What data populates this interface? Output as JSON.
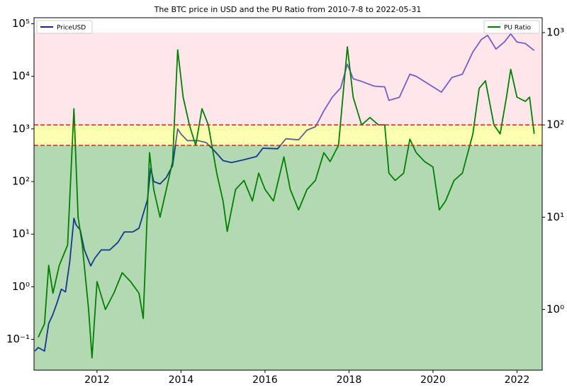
{
  "chart_data": {
    "type": "line",
    "title": "The BTC price in USD and the PU Ratio from 2010-7-8 to 2022-05-31",
    "xlim": [
      2010.5,
      2022.6
    ],
    "xticks": [
      2012,
      2014,
      2016,
      2018,
      2020,
      2022
    ],
    "ylog": true,
    "ylim": [
      0.026,
      130000
    ],
    "yticks": [
      {
        "value": 0.1,
        "label": "10⁻¹"
      },
      {
        "value": 1,
        "label": "10⁰"
      },
      {
        "value": 10,
        "label": "10¹"
      },
      {
        "value": 100,
        "label": "10²"
      },
      {
        "value": 1000,
        "label": "10³"
      },
      {
        "value": 10000,
        "label": "10⁴"
      },
      {
        "value": 100000,
        "label": "10⁵"
      }
    ],
    "y2log": true,
    "y2lim": [
      0.22,
      1450
    ],
    "y2ticks": [
      {
        "value": 1,
        "label": "10⁰"
      },
      {
        "value": 10,
        "label": "10¹"
      },
      {
        "value": 100,
        "label": "10²"
      },
      {
        "value": 1000,
        "label": "10³"
      }
    ],
    "bands": [
      {
        "upper": 60,
        "color": "#008000",
        "opacity": 0.3,
        "dashed": true
      },
      {
        "upper": 100,
        "color": "#ffff00",
        "opacity": 0.3,
        "dashed": true
      },
      {
        "upper": 1000,
        "color": "#ffc0cb",
        "opacity": 0.4,
        "dashed": false
      }
    ],
    "dash_color": "#d62728",
    "series": [
      {
        "name": "PriceUSD",
        "color": "#1a1acc",
        "axis": "y",
        "legend": "upper left",
        "x": [
          2010.52,
          2010.6,
          2010.75,
          2010.85,
          2010.95,
          2011.05,
          2011.15,
          2011.25,
          2011.35,
          2011.45,
          2011.5,
          2011.6,
          2011.7,
          2011.85,
          2011.95,
          2012.1,
          2012.3,
          2012.5,
          2012.65,
          2012.85,
          2013.0,
          2013.2,
          2013.28,
          2013.35,
          2013.5,
          2013.65,
          2013.8,
          2013.92,
          2014.0,
          2014.15,
          2014.4,
          2014.6,
          2014.8,
          2015.0,
          2015.2,
          2015.5,
          2015.8,
          2015.95,
          2016.3,
          2016.5,
          2016.8,
          2017.0,
          2017.2,
          2017.4,
          2017.6,
          2017.8,
          2017.96,
          2018.1,
          2018.3,
          2018.6,
          2018.85,
          2018.95,
          2019.2,
          2019.45,
          2019.6,
          2019.85,
          2020.2,
          2020.45,
          2020.7,
          2020.95,
          2021.15,
          2021.3,
          2021.5,
          2021.7,
          2021.85,
          2022.0,
          2022.2,
          2022.41
        ],
        "values": [
          0.06,
          0.07,
          0.06,
          0.2,
          0.3,
          0.5,
          0.9,
          0.8,
          3,
          20,
          15,
          12,
          5,
          2.5,
          3.5,
          5,
          5,
          7,
          11,
          11,
          13,
          45,
          180,
          100,
          90,
          120,
          200,
          1000,
          800,
          600,
          600,
          550,
          380,
          250,
          230,
          260,
          300,
          430,
          420,
          650,
          620,
          950,
          1100,
          2200,
          4000,
          6000,
          17000,
          9000,
          8000,
          6500,
          6300,
          3500,
          4000,
          11000,
          10000,
          7500,
          5000,
          9500,
          11000,
          29000,
          50000,
          60000,
          33000,
          45000,
          64000,
          45000,
          42000,
          31000
        ]
      },
      {
        "name": "PU Ratio",
        "color": "#008000",
        "axis": "y2",
        "legend": "upper right",
        "x": [
          2010.6,
          2010.75,
          2010.85,
          2010.95,
          2011.1,
          2011.3,
          2011.45,
          2011.55,
          2011.65,
          2011.8,
          2011.88,
          2012.0,
          2012.2,
          2012.4,
          2012.6,
          2012.8,
          2013.0,
          2013.1,
          2013.25,
          2013.35,
          2013.5,
          2013.65,
          2013.8,
          2013.92,
          2014.05,
          2014.2,
          2014.35,
          2014.5,
          2014.65,
          2014.85,
          2015.0,
          2015.1,
          2015.3,
          2015.5,
          2015.7,
          2015.85,
          2016.0,
          2016.2,
          2016.45,
          2016.6,
          2016.8,
          2017.0,
          2017.2,
          2017.4,
          2017.55,
          2017.75,
          2017.96,
          2018.1,
          2018.3,
          2018.5,
          2018.7,
          2018.85,
          2018.95,
          2019.1,
          2019.3,
          2019.45,
          2019.6,
          2019.8,
          2020.0,
          2020.15,
          2020.3,
          2020.5,
          2020.7,
          2020.95,
          2021.1,
          2021.25,
          2021.45,
          2021.6,
          2021.75,
          2021.85,
          2022.0,
          2022.2,
          2022.3,
          2022.41
        ],
        "values": [
          0.5,
          0.7,
          3,
          1.5,
          3,
          5,
          150,
          10,
          5,
          1,
          0.3,
          2,
          1,
          1.5,
          2.5,
          2,
          1.5,
          0.8,
          50,
          20,
          10,
          20,
          40,
          650,
          200,
          100,
          60,
          150,
          100,
          30,
          15,
          7,
          20,
          25,
          15,
          30,
          20,
          15,
          45,
          20,
          12,
          20,
          25,
          50,
          40,
          60,
          700,
          200,
          100,
          120,
          100,
          100,
          30,
          25,
          30,
          70,
          50,
          40,
          35,
          12,
          15,
          25,
          30,
          80,
          250,
          300,
          100,
          80,
          200,
          400,
          200,
          180,
          200,
          80
        ]
      }
    ]
  }
}
